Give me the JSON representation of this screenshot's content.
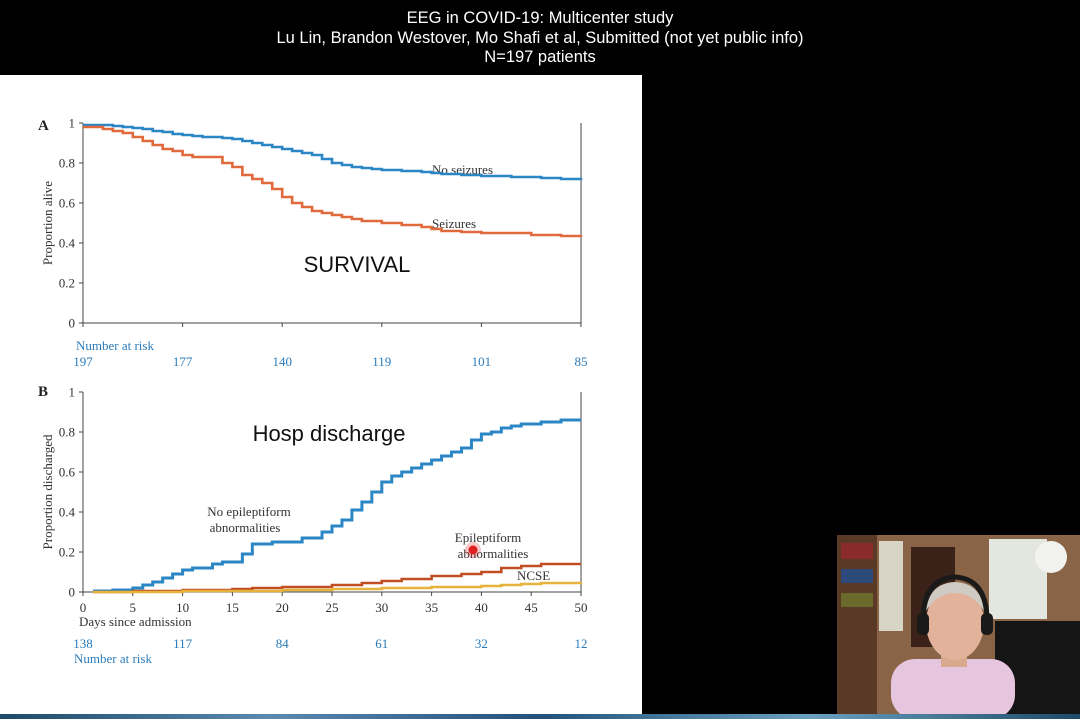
{
  "header": {
    "title": "EEG in COVID-19: Multicenter study",
    "authors": "Lu Lin, Brandon Westover, Mo Shafi et al, Submitted (not yet public info)",
    "patients": "N=197 patients"
  },
  "colors": {
    "blue": "#2b86c5",
    "orange": "#e16a3c",
    "dark_orange": "#c04e22",
    "yellow": "#e6b33c",
    "risk_blue": "#2b7bb9",
    "axis": "#444444",
    "cursor": "#e02020"
  },
  "chart_data": [
    {
      "panel": "A",
      "type": "line",
      "step": true,
      "title": "SURVIVAL",
      "ylabel": "Proportion alive",
      "xlabel": "",
      "ylim": [
        0,
        1
      ],
      "xlim": [
        0,
        50
      ],
      "yticks": [
        0,
        0.2,
        0.4,
        0.6,
        0.8,
        1
      ],
      "ytick_labels": [
        "0",
        "0.2",
        "0.4",
        "0.6",
        "0.8",
        "1"
      ],
      "grid": false,
      "risk_label": "Number at risk",
      "risk_x": [
        0,
        10,
        20,
        30,
        40,
        50
      ],
      "risk_values": [
        "197",
        "177",
        "140",
        "119",
        "101",
        "85"
      ],
      "series": [
        {
          "name": "No seizures",
          "color_key": "blue",
          "x": [
            0,
            1,
            2,
            3,
            4,
            5,
            6,
            7,
            8,
            9,
            10,
            11,
            12,
            13,
            14,
            15,
            16,
            17,
            18,
            19,
            20,
            21,
            22,
            23,
            24,
            25,
            26,
            27,
            28,
            29,
            30,
            32,
            34,
            35,
            36,
            38,
            40,
            43,
            45,
            46,
            48,
            50
          ],
          "y": [
            0.99,
            0.99,
            0.99,
            0.985,
            0.98,
            0.975,
            0.97,
            0.96,
            0.955,
            0.945,
            0.94,
            0.935,
            0.93,
            0.93,
            0.925,
            0.92,
            0.91,
            0.9,
            0.89,
            0.88,
            0.87,
            0.86,
            0.85,
            0.84,
            0.82,
            0.8,
            0.79,
            0.78,
            0.775,
            0.77,
            0.765,
            0.76,
            0.755,
            0.75,
            0.745,
            0.74,
            0.735,
            0.73,
            0.73,
            0.725,
            0.72,
            0.715
          ]
        },
        {
          "name": "Seizures",
          "color_key": "orange",
          "x": [
            0,
            1,
            2,
            3,
            4,
            5,
            6,
            7,
            8,
            9,
            10,
            11,
            12,
            13,
            14,
            15,
            16,
            17,
            18,
            19,
            20,
            21,
            22,
            23,
            24,
            25,
            26,
            27,
            28,
            29,
            30,
            32,
            34,
            35,
            36,
            38,
            40,
            43,
            45,
            46,
            48,
            50
          ],
          "y": [
            0.98,
            0.98,
            0.97,
            0.96,
            0.95,
            0.93,
            0.91,
            0.89,
            0.87,
            0.86,
            0.84,
            0.83,
            0.83,
            0.83,
            0.8,
            0.78,
            0.74,
            0.72,
            0.7,
            0.67,
            0.63,
            0.6,
            0.58,
            0.56,
            0.55,
            0.54,
            0.53,
            0.52,
            0.51,
            0.51,
            0.5,
            0.49,
            0.48,
            0.47,
            0.46,
            0.455,
            0.45,
            0.45,
            0.44,
            0.44,
            0.435,
            0.43
          ]
        }
      ]
    },
    {
      "panel": "B",
      "type": "line",
      "step": true,
      "title": "Hosp discharge",
      "ylabel": "Proportion discharged",
      "xlabel": "Days since admission",
      "ylim": [
        0,
        1
      ],
      "xlim": [
        0,
        50
      ],
      "xticks": [
        0,
        5,
        10,
        15,
        20,
        25,
        30,
        35,
        40,
        45,
        50
      ],
      "xtick_labels": [
        "0",
        "5",
        "10",
        "15",
        "20",
        "25",
        "30",
        "35",
        "40",
        "45",
        "50"
      ],
      "yticks": [
        0,
        0.2,
        0.4,
        0.6,
        0.8,
        1
      ],
      "ytick_labels": [
        "0",
        "0.2",
        "0.4",
        "0.6",
        "0.8",
        "1"
      ],
      "grid": false,
      "risk_label": "Number at risk",
      "risk_x": [
        0,
        10,
        20,
        30,
        40,
        50
      ],
      "risk_values": [
        "138",
        "117",
        "84",
        "61",
        "32",
        "12"
      ],
      "series": [
        {
          "name": "No epileptiform abnormalities",
          "color_key": "blue",
          "x": [
            1,
            3,
            5,
            6,
            7,
            8,
            9,
            10,
            11,
            13,
            14,
            16,
            17,
            18,
            19,
            20,
            22,
            24,
            25,
            26,
            27,
            28,
            29,
            30,
            31,
            32,
            33,
            34,
            35,
            36,
            37,
            38,
            39,
            40,
            41,
            42,
            43,
            44,
            46,
            48,
            50
          ],
          "y": [
            0.005,
            0.01,
            0.02,
            0.035,
            0.05,
            0.07,
            0.09,
            0.11,
            0.12,
            0.14,
            0.15,
            0.19,
            0.24,
            0.24,
            0.25,
            0.25,
            0.27,
            0.3,
            0.33,
            0.36,
            0.41,
            0.45,
            0.5,
            0.55,
            0.58,
            0.6,
            0.62,
            0.64,
            0.66,
            0.68,
            0.7,
            0.72,
            0.76,
            0.79,
            0.8,
            0.82,
            0.83,
            0.84,
            0.85,
            0.86,
            0.86
          ]
        },
        {
          "name": "Epileptiform abnormalities",
          "color_key": "dark_orange",
          "x": [
            1,
            5,
            10,
            15,
            17,
            20,
            25,
            28,
            30,
            32,
            35,
            38,
            40,
            42,
            44,
            46,
            48,
            50
          ],
          "y": [
            0.0,
            0.005,
            0.01,
            0.015,
            0.02,
            0.025,
            0.035,
            0.045,
            0.055,
            0.065,
            0.08,
            0.09,
            0.1,
            0.12,
            0.13,
            0.14,
            0.14,
            0.14
          ]
        },
        {
          "name": "NCSE",
          "color_key": "yellow",
          "x": [
            1,
            10,
            20,
            25,
            30,
            35,
            40,
            42,
            44,
            46,
            48,
            50
          ],
          "y": [
            0.0,
            0.005,
            0.01,
            0.015,
            0.02,
            0.025,
            0.03,
            0.035,
            0.04,
            0.045,
            0.045,
            0.05
          ]
        }
      ],
      "series_labels": [
        {
          "lines": [
            "No epileptiform",
            "abnormalities"
          ],
          "series": 0
        },
        {
          "lines": [
            "Epileptiform",
            "abnormalities"
          ],
          "series": 1
        },
        {
          "lines": [
            "NCSE"
          ],
          "series": 2
        }
      ]
    }
  ]
}
